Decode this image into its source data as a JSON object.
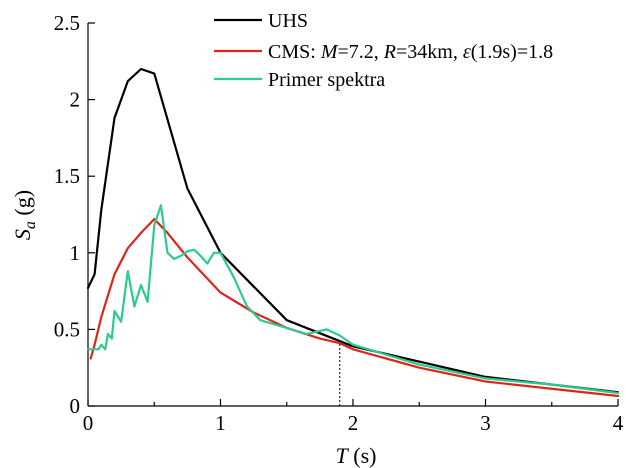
{
  "chart_data": {
    "type": "line",
    "xlabel_var": "T",
    "xlabel_unit": "(s)",
    "ylabel_var": "S",
    "ylabel_sub": "a",
    "ylabel_unit": "(g)",
    "xlim": [
      0,
      4
    ],
    "ylim": [
      0,
      2.5
    ],
    "x_ticks": [
      "0",
      "1",
      "2",
      "3",
      "4"
    ],
    "y_ticks": [
      "0",
      "0.5",
      "1",
      "1.5",
      "2",
      "2.5"
    ],
    "grid": false,
    "legend_position": "top-right",
    "marker_period": 1.9,
    "legend": {
      "uhs": "UHS",
      "cms_prefix": "CMS: ",
      "cms_m": "M",
      "cms_m_val": "=7.2, ",
      "cms_r": "R",
      "cms_r_val": "=34km, ",
      "cms_eps": "ε",
      "cms_eps_val": "(1.9s)=1.8",
      "primer": "Primer spektra"
    },
    "series": [
      {
        "name": "UHS",
        "color": "#000000",
        "x": [
          0,
          0.05,
          0.1,
          0.2,
          0.3,
          0.4,
          0.5,
          0.75,
          1.0,
          1.5,
          2.0,
          3.0,
          4.0
        ],
        "y": [
          0.77,
          0.86,
          1.28,
          1.88,
          2.12,
          2.2,
          2.17,
          1.42,
          1.0,
          0.56,
          0.39,
          0.19,
          0.09
        ]
      },
      {
        "name": "CMS: M=7.2, R=34km, ε(1.9s)=1.8",
        "color": "#e0231b",
        "x": [
          0.02,
          0.05,
          0.1,
          0.2,
          0.3,
          0.4,
          0.5,
          0.6,
          0.75,
          1.0,
          1.25,
          1.5,
          1.75,
          1.9,
          2.0,
          2.5,
          3.0,
          4.0
        ],
        "y": [
          0.31,
          0.4,
          0.58,
          0.86,
          1.03,
          1.13,
          1.22,
          1.13,
          0.97,
          0.74,
          0.61,
          0.51,
          0.44,
          0.41,
          0.37,
          0.25,
          0.16,
          0.065
        ]
      },
      {
        "name": "Primer spektra",
        "color": "#2bcb8e",
        "x": [
          0.0,
          0.05,
          0.08,
          0.1,
          0.13,
          0.15,
          0.18,
          0.2,
          0.25,
          0.3,
          0.35,
          0.4,
          0.45,
          0.5,
          0.55,
          0.6,
          0.65,
          0.7,
          0.75,
          0.8,
          0.85,
          0.9,
          0.95,
          1.0,
          1.1,
          1.2,
          1.3,
          1.5,
          1.65,
          1.8,
          1.9,
          2.0,
          2.5,
          3.0,
          3.5,
          4.0
        ],
        "y": [
          0.37,
          0.37,
          0.37,
          0.4,
          0.37,
          0.47,
          0.44,
          0.62,
          0.55,
          0.88,
          0.65,
          0.79,
          0.68,
          1.18,
          1.31,
          1.0,
          0.96,
          0.98,
          1.01,
          1.02,
          0.98,
          0.93,
          1.0,
          1.0,
          0.84,
          0.65,
          0.56,
          0.51,
          0.47,
          0.5,
          0.46,
          0.4,
          0.27,
          0.18,
          0.14,
          0.085
        ]
      }
    ]
  }
}
